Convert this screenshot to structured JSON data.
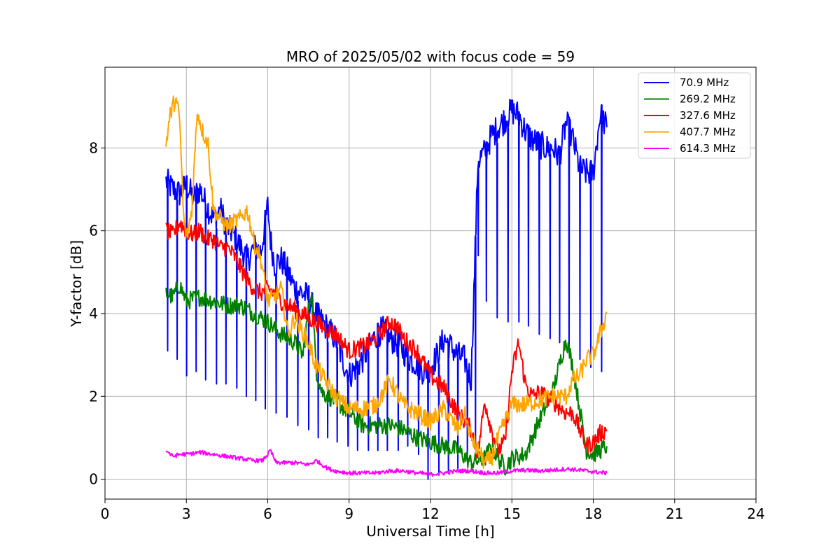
{
  "chart_data": {
    "type": "line",
    "title": "MRO of 2025/05/02 with focus code = 59",
    "xlabel": "Universal Time [h]",
    "ylabel": "Y-factor [dB]",
    "xlim": [
      0,
      24
    ],
    "ylim": [
      -0.48,
      9.95
    ],
    "xticks": [
      0,
      3,
      6,
      9,
      12,
      15,
      18,
      21,
      24
    ],
    "yticks": [
      0,
      2,
      4,
      6,
      8
    ],
    "grid": true,
    "legend_position": "top-right",
    "series": [
      {
        "name": " 70.9 MHz",
        "color": "#0000ff",
        "x": [
          2.25,
          2.5,
          2.75,
          3.0,
          3.25,
          3.5,
          3.75,
          4.0,
          4.25,
          4.5,
          4.75,
          5.0,
          5.25,
          5.5,
          5.75,
          6.0,
          6.1,
          6.25,
          6.5,
          6.75,
          7.0,
          7.25,
          7.5,
          7.75,
          8.0,
          8.25,
          8.5,
          8.75,
          9.0,
          9.25,
          9.5,
          9.75,
          10.0,
          10.25,
          10.5,
          10.75,
          11.0,
          11.25,
          11.5,
          11.75,
          12.0,
          12.25,
          12.5,
          12.75,
          13.0,
          13.25,
          13.5,
          13.75,
          14.0,
          14.25,
          14.5,
          14.75,
          15.0,
          15.25,
          15.5,
          15.75,
          16.0,
          16.25,
          16.5,
          16.75,
          17.0,
          17.25,
          17.5,
          17.75,
          18.0,
          18.25,
          18.5
        ],
        "y": [
          7.2,
          7.0,
          6.9,
          7.1,
          6.8,
          7.0,
          6.6,
          6.3,
          6.5,
          6.1,
          5.9,
          5.6,
          5.3,
          5.6,
          5.5,
          6.6,
          5.8,
          5.2,
          5.3,
          5.0,
          4.6,
          4.5,
          4.4,
          4.0,
          3.8,
          3.6,
          3.4,
          2.9,
          2.5,
          2.7,
          2.9,
          3.2,
          3.5,
          3.6,
          3.4,
          3.3,
          3.1,
          2.9,
          2.8,
          2.6,
          2.7,
          3.0,
          3.4,
          3.2,
          3.0,
          2.9,
          2.4,
          7.7,
          7.9,
          8.3,
          8.5,
          8.7,
          8.9,
          8.8,
          8.4,
          8.2,
          8.1,
          8.0,
          8.0,
          7.8,
          8.6,
          8.2,
          7.5,
          7.4,
          7.4,
          8.8,
          8.5
        ],
        "dips": [
          [
            2.3,
            3.1
          ],
          [
            2.65,
            2.9
          ],
          [
            3.0,
            2.5
          ],
          [
            3.35,
            2.6
          ],
          [
            3.7,
            2.4
          ],
          [
            4.1,
            2.3
          ],
          [
            4.45,
            2.3
          ],
          [
            4.85,
            2.2
          ],
          [
            5.2,
            2.0
          ],
          [
            5.55,
            1.9
          ],
          [
            5.9,
            1.7
          ],
          [
            6.3,
            1.6
          ],
          [
            6.7,
            1.5
          ],
          [
            7.1,
            1.3
          ],
          [
            7.5,
            1.2
          ],
          [
            7.85,
            1.0
          ],
          [
            8.2,
            1.0
          ],
          [
            8.55,
            0.9
          ],
          [
            8.95,
            0.8
          ],
          [
            9.3,
            0.7
          ],
          [
            9.7,
            0.7
          ],
          [
            10.05,
            0.7
          ],
          [
            10.4,
            0.7
          ],
          [
            10.8,
            0.7
          ],
          [
            11.15,
            0.8
          ],
          [
            11.55,
            0.6
          ],
          [
            11.9,
            0.0
          ],
          [
            12.3,
            0.1
          ],
          [
            12.65,
            0.2
          ],
          [
            13.0,
            0.2
          ],
          [
            13.35,
            0.5
          ],
          [
            13.65,
            0.7
          ],
          [
            13.75,
            5.4
          ],
          [
            14.05,
            4.3
          ],
          [
            14.45,
            3.9
          ],
          [
            14.85,
            3.8
          ],
          [
            15.25,
            3.8
          ],
          [
            15.6,
            3.7
          ],
          [
            16.0,
            3.5
          ],
          [
            16.4,
            3.4
          ],
          [
            16.75,
            3.3
          ],
          [
            17.1,
            3.1
          ],
          [
            17.5,
            2.9
          ],
          [
            17.9,
            2.7
          ],
          [
            18.3,
            2.6
          ]
        ]
      },
      {
        "name": "269.2 MHz",
        "color": "#008000",
        "x": [
          2.25,
          2.5,
          2.75,
          3.0,
          3.5,
          4.0,
          4.5,
          5.0,
          5.5,
          6.0,
          6.5,
          7.0,
          7.3,
          7.6,
          7.8,
          8.0,
          8.5,
          9.0,
          9.5,
          10.0,
          10.5,
          11.0,
          11.5,
          12.0,
          12.5,
          13.0,
          13.5,
          14.0,
          14.25,
          14.5,
          14.75,
          15.0,
          15.5,
          16.0,
          16.5,
          17.0,
          17.25,
          17.5,
          17.75,
          18.0,
          18.25,
          18.5
        ],
        "y": [
          4.5,
          4.4,
          4.7,
          4.3,
          4.4,
          4.3,
          4.2,
          4.2,
          4.0,
          3.8,
          3.5,
          3.3,
          3.0,
          4.6,
          2.6,
          2.1,
          1.9,
          1.6,
          1.3,
          1.3,
          1.3,
          1.2,
          1.0,
          0.9,
          0.8,
          0.7,
          0.4,
          0.5,
          0.8,
          0.5,
          0.3,
          0.5,
          0.6,
          1.4,
          2.1,
          3.4,
          2.7,
          1.7,
          0.7,
          0.6,
          0.7,
          0.8
        ],
        "dips": []
      },
      {
        "name": "327.6 MHz",
        "color": "#ff0000",
        "x": [
          2.25,
          2.5,
          2.75,
          3.0,
          3.25,
          3.5,
          3.75,
          4.0,
          4.25,
          4.5,
          4.75,
          5.0,
          5.25,
          5.5,
          5.75,
          6.0,
          6.25,
          6.5,
          6.75,
          7.0,
          7.5,
          8.0,
          8.5,
          9.0,
          9.5,
          10.0,
          10.25,
          10.5,
          10.75,
          11.0,
          11.5,
          12.0,
          12.5,
          13.0,
          13.5,
          13.75,
          14.0,
          14.25,
          14.5,
          14.75,
          15.0,
          15.25,
          15.5,
          15.75,
          16.0,
          16.5,
          17.0,
          17.25,
          17.5,
          17.75,
          18.0,
          18.25,
          18.5
        ],
        "y": [
          6.0,
          5.9,
          6.2,
          6.0,
          5.9,
          6.0,
          5.8,
          5.8,
          5.6,
          5.6,
          5.4,
          5.1,
          4.8,
          4.6,
          4.5,
          4.6,
          4.5,
          4.3,
          4.2,
          4.1,
          3.9,
          3.7,
          3.5,
          3.1,
          3.2,
          3.4,
          3.6,
          3.8,
          3.7,
          3.4,
          3.1,
          2.5,
          2.2,
          1.6,
          1.2,
          0.6,
          1.9,
          1.2,
          0.7,
          0.9,
          2.6,
          3.3,
          2.3,
          2.0,
          2.1,
          1.9,
          1.6,
          1.6,
          1.2,
          0.8,
          0.9,
          1.1,
          1.2
        ],
        "dips": []
      },
      {
        "name": "407.7 MHz",
        "color": "#ffa500",
        "x": [
          2.25,
          2.4,
          2.6,
          2.75,
          2.9,
          3.0,
          3.2,
          3.4,
          3.6,
          3.8,
          4.0,
          4.25,
          4.5,
          4.75,
          5.0,
          5.25,
          5.5,
          5.75,
          6.0,
          6.25,
          6.5,
          6.75,
          7.0,
          7.25,
          7.5,
          7.75,
          8.0,
          8.5,
          9.0,
          9.5,
          10.0,
          10.5,
          11.0,
          11.5,
          12.0,
          12.5,
          13.0,
          13.25,
          13.5,
          13.75,
          14.0,
          14.25,
          14.5,
          15.0,
          15.5,
          16.0,
          16.5,
          17.0,
          17.25,
          17.5,
          17.75,
          18.0,
          18.25,
          18.5
        ],
        "y": [
          8.1,
          8.8,
          9.2,
          8.7,
          6.3,
          5.8,
          6.5,
          8.9,
          8.4,
          8.1,
          6.5,
          6.3,
          6.1,
          6.2,
          6.3,
          6.5,
          5.7,
          5.3,
          4.3,
          4.4,
          4.6,
          3.5,
          3.9,
          3.6,
          3.3,
          2.8,
          2.5,
          2.0,
          1.7,
          1.7,
          1.8,
          2.4,
          1.8,
          1.6,
          1.4,
          1.7,
          1.2,
          1.6,
          1.0,
          0.7,
          0.4,
          0.5,
          1.0,
          1.8,
          1.8,
          1.9,
          2.0,
          2.0,
          2.4,
          2.5,
          2.9,
          3.0,
          3.5,
          4.0
        ],
        "dips": []
      },
      {
        "name": "614.3 MHz",
        "color": "#ff00ff",
        "x": [
          2.25,
          2.5,
          2.75,
          3.0,
          3.5,
          4.0,
          4.5,
          5.0,
          5.5,
          5.8,
          6.0,
          6.1,
          6.3,
          6.5,
          7.0,
          7.5,
          7.8,
          8.0,
          8.25,
          8.5,
          9.0,
          9.5,
          10.0,
          10.5,
          11.0,
          11.5,
          12.0,
          12.5,
          13.0,
          13.5,
          14.0,
          14.5,
          15.0,
          15.5,
          16.0,
          16.5,
          17.0,
          17.5,
          18.0,
          18.5
        ],
        "y": [
          0.7,
          0.55,
          0.6,
          0.6,
          0.65,
          0.6,
          0.55,
          0.5,
          0.45,
          0.45,
          0.6,
          0.7,
          0.4,
          0.4,
          0.4,
          0.35,
          0.45,
          0.35,
          0.25,
          0.2,
          0.15,
          0.15,
          0.15,
          0.2,
          0.2,
          0.15,
          0.12,
          0.15,
          0.2,
          0.2,
          0.15,
          0.15,
          0.2,
          0.22,
          0.2,
          0.22,
          0.25,
          0.22,
          0.18,
          0.15
        ],
        "dips": []
      }
    ]
  }
}
